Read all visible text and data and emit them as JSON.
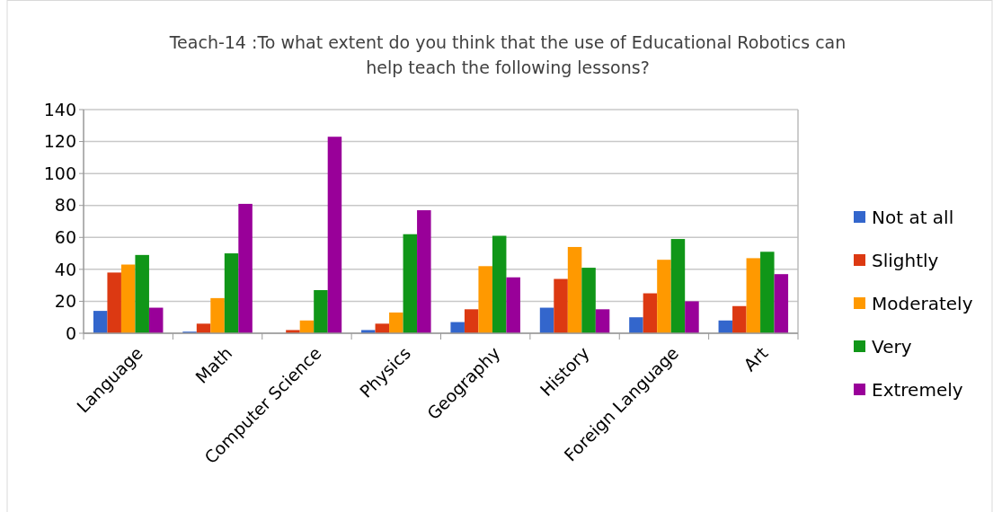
{
  "chart_data": {
    "type": "bar",
    "title": "Teach-14 :To what extent do you think that the use of Educational Robotics can help teach the following lessons?",
    "categories": [
      "Language",
      "Math",
      "Computer Science",
      "Physics",
      "Geography",
      "History",
      "Foreign Language",
      "Art"
    ],
    "series": [
      {
        "name": "Not at all",
        "color": "#3366cc",
        "values": [
          14,
          1,
          0,
          2,
          7,
          16,
          10,
          8
        ]
      },
      {
        "name": "Slightly",
        "color": "#dc3912",
        "values": [
          38,
          6,
          2,
          6,
          15,
          34,
          25,
          17
        ]
      },
      {
        "name": "Moderately",
        "color": "#ff9900",
        "values": [
          43,
          22,
          8,
          13,
          42,
          54,
          46,
          47
        ]
      },
      {
        "name": "Very",
        "color": "#109618",
        "values": [
          49,
          50,
          27,
          62,
          61,
          41,
          59,
          51
        ]
      },
      {
        "name": "Extremely",
        "color": "#990099",
        "values": [
          16,
          81,
          123,
          77,
          35,
          15,
          20,
          37
        ]
      }
    ],
    "ylim": [
      0,
      140
    ],
    "yticks": [
      0,
      20,
      40,
      60,
      80,
      100,
      120,
      140
    ],
    "grid": "y",
    "legend": "right"
  }
}
